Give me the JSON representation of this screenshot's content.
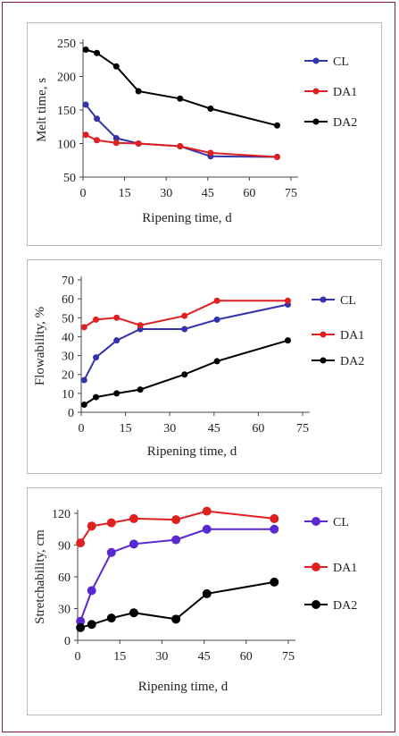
{
  "chart_data": [
    {
      "type": "line",
      "ylabel": "Melt time, s",
      "xlabel": "Ripening time, d",
      "xlim": [
        0,
        75
      ],
      "ylim": [
        50,
        250
      ],
      "xticks": [
        "0",
        "15",
        "30",
        "45",
        "60",
        "75"
      ],
      "yticks": [
        "50",
        "100",
        "150",
        "200",
        "250"
      ],
      "legend_position": "right",
      "series": [
        {
          "name": "CL",
          "color": "#3333aa",
          "x": [
            1,
            5,
            12,
            20,
            35,
            46,
            70
          ],
          "y": [
            158,
            137,
            108,
            100,
            96,
            81,
            80
          ]
        },
        {
          "name": "DA1",
          "color": "#e02020",
          "x": [
            1,
            5,
            12,
            20,
            35,
            46,
            70
          ],
          "y": [
            113,
            105,
            101,
            100,
            96,
            86,
            80
          ]
        },
        {
          "name": "DA2",
          "color": "#000000",
          "x": [
            1,
            5,
            12,
            20,
            35,
            46,
            70
          ],
          "y": [
            240,
            235,
            215,
            178,
            167,
            152,
            127
          ]
        }
      ]
    },
    {
      "type": "line",
      "ylabel": "Flowability, %",
      "xlabel": "Ripening time, d",
      "xlim": [
        0,
        75
      ],
      "ylim": [
        0,
        70
      ],
      "xticks": [
        "0",
        "15",
        "30",
        "45",
        "60",
        "75"
      ],
      "yticks": [
        "0",
        "10",
        "20",
        "30",
        "40",
        "50",
        "60",
        "70"
      ],
      "legend_position": "right",
      "series": [
        {
          "name": "CL",
          "color": "#3333aa",
          "x": [
            1,
            5,
            12,
            20,
            35,
            46,
            70
          ],
          "y": [
            17,
            29,
            38,
            44,
            44,
            49,
            57
          ]
        },
        {
          "name": "DA1",
          "color": "#e02020",
          "x": [
            1,
            5,
            12,
            20,
            35,
            46,
            70
          ],
          "y": [
            45,
            49,
            50,
            46,
            51,
            59,
            59
          ]
        },
        {
          "name": "DA2",
          "color": "#000000",
          "x": [
            1,
            5,
            12,
            20,
            35,
            46,
            70
          ],
          "y": [
            4,
            8,
            10,
            12,
            20,
            27,
            38
          ]
        }
      ]
    },
    {
      "type": "line",
      "ylabel": "Stretchability, cm",
      "xlabel": "Ripening time, d",
      "xlim": [
        0,
        75
      ],
      "ylim": [
        0,
        120
      ],
      "xticks": [
        "0",
        "15",
        "30",
        "45",
        "60",
        "75"
      ],
      "yticks": [
        "0",
        "30",
        "60",
        "90",
        "120"
      ],
      "legend_position": "right",
      "series": [
        {
          "name": "CL",
          "color": "#5a28d0",
          "x": [
            1,
            5,
            12,
            20,
            35,
            46,
            70
          ],
          "y": [
            18,
            47,
            83,
            91,
            95,
            105,
            105
          ]
        },
        {
          "name": "DA1",
          "color": "#e02020",
          "x": [
            1,
            5,
            12,
            20,
            35,
            46,
            70
          ],
          "y": [
            92,
            108,
            111,
            115,
            114,
            122,
            115
          ]
        },
        {
          "name": "DA2",
          "color": "#000000",
          "x": [
            1,
            5,
            12,
            20,
            35,
            46,
            70
          ],
          "y": [
            12,
            15,
            21,
            26,
            20,
            44,
            55
          ]
        }
      ]
    }
  ]
}
